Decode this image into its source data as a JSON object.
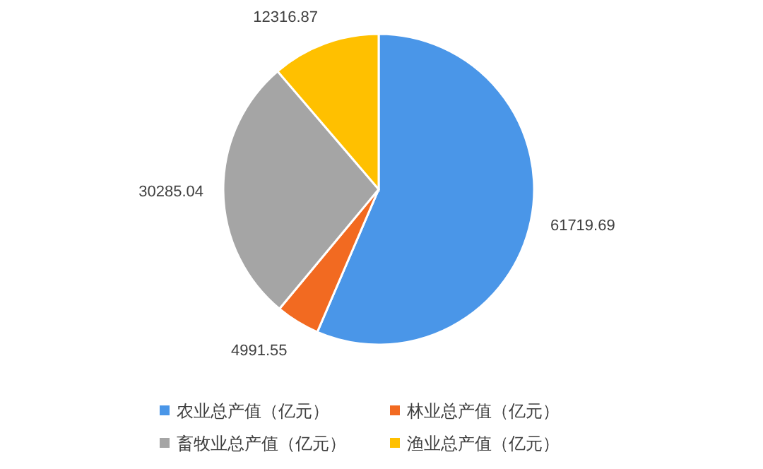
{
  "chart_data": {
    "type": "pie",
    "categories": [
      "农业总产值（亿元）",
      "林业总产值（亿元）",
      "畜牧业总产值（亿元）",
      "渔业总产值（亿元）"
    ],
    "values": [
      61719.69,
      4991.55,
      30285.04,
      12316.87
    ],
    "colors": [
      "#4a96e8",
      "#f26a21",
      "#a5a5a5",
      "#ffc000"
    ],
    "data_labels": true,
    "legend": "bottom"
  }
}
